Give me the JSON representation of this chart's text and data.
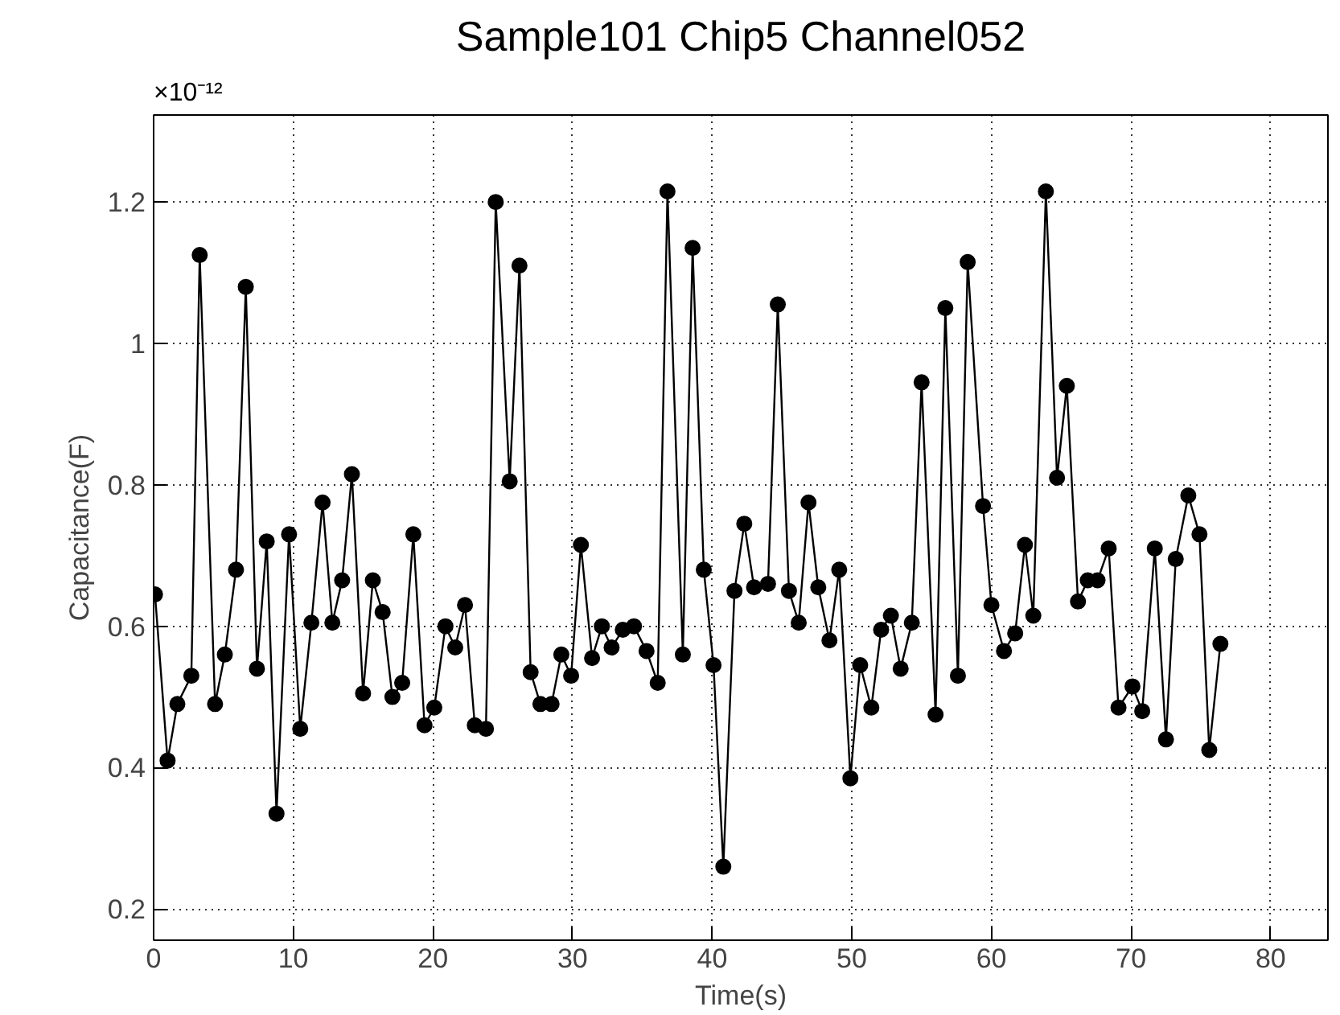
{
  "chart_data": {
    "type": "line",
    "title": "Sample101 Chip5 Channel052",
    "xlabel": "Time(s)",
    "ylabel": "Capacitance(F)",
    "annotations": [
      "×10⁻¹²"
    ],
    "xlim": [
      0,
      84.1
    ],
    "ylim": [
      0.156,
      1.323
    ],
    "xticks": [
      0,
      10,
      20,
      30,
      40,
      50,
      60,
      70,
      80
    ],
    "yticks": [
      {
        "value": 0.2,
        "label": "0.2"
      },
      {
        "value": 0.4,
        "label": "0.4"
      },
      {
        "value": 0.6,
        "label": "0.6"
      },
      {
        "value": 0.8,
        "label": "0.8"
      },
      {
        "value": 1.0,
        "label": "1"
      },
      {
        "value": 1.2,
        "label": "1.2"
      }
    ],
    "grid": true,
    "marker": "circle",
    "line_style": "solid",
    "series": [
      {
        "color": "#000000",
        "x": [
          0.1,
          1.0,
          1.7,
          2.7,
          3.3,
          4.4,
          5.1,
          5.9,
          6.6,
          7.4,
          8.1,
          8.8,
          9.7,
          10.5,
          11.3,
          12.1,
          12.8,
          13.5,
          14.2,
          15.0,
          15.7,
          16.4,
          17.1,
          17.8,
          18.6,
          19.4,
          20.1,
          20.9,
          21.6,
          22.3,
          23.0,
          23.8,
          24.5,
          25.5,
          26.2,
          27.0,
          27.7,
          28.5,
          29.2,
          29.9,
          30.6,
          31.4,
          32.1,
          32.8,
          33.6,
          34.4,
          35.3,
          36.1,
          36.8,
          37.9,
          38.6,
          39.4,
          40.1,
          40.8,
          41.6,
          42.3,
          43.0,
          44.0,
          44.7,
          45.5,
          46.2,
          46.9,
          47.6,
          48.4,
          49.1,
          49.9,
          50.6,
          51.4,
          52.1,
          52.8,
          53.5,
          54.3,
          55.0,
          56.0,
          56.7,
          57.6,
          58.3,
          59.4,
          60.0,
          60.9,
          61.7,
          62.4,
          63.0,
          63.9,
          64.7,
          65.4,
          66.2,
          66.9,
          67.6,
          68.4,
          69.1,
          70.1,
          70.8,
          71.7,
          72.5,
          73.2,
          74.1,
          74.9,
          75.6,
          76.4
        ],
        "values": [
          0.645,
          0.41,
          0.49,
          0.53,
          1.125,
          0.49,
          0.56,
          0.68,
          1.08,
          0.54,
          0.72,
          0.335,
          0.73,
          0.455,
          0.605,
          0.775,
          0.605,
          0.665,
          0.815,
          0.505,
          0.665,
          0.62,
          0.5,
          0.52,
          0.73,
          0.46,
          0.485,
          0.6,
          0.57,
          0.63,
          0.46,
          0.455,
          1.2,
          0.805,
          1.11,
          0.535,
          0.49,
          0.49,
          0.56,
          0.53,
          0.715,
          0.555,
          0.6,
          0.57,
          0.595,
          0.6,
          0.565,
          0.52,
          1.215,
          0.56,
          1.135,
          0.68,
          0.545,
          0.26,
          0.65,
          0.745,
          0.655,
          0.66,
          1.055,
          0.65,
          0.605,
          0.775,
          0.655,
          0.58,
          0.68,
          0.385,
          0.545,
          0.485,
          0.595,
          0.615,
          0.54,
          0.605,
          0.945,
          0.475,
          1.05,
          0.53,
          1.115,
          0.77,
          0.63,
          0.565,
          0.59,
          0.715,
          0.615,
          1.215,
          0.81,
          0.94,
          0.635,
          0.665,
          0.665,
          0.71,
          0.485,
          0.515,
          0.48,
          0.71,
          0.44,
          0.695,
          0.785,
          0.73,
          0.425,
          0.575
        ]
      }
    ]
  }
}
